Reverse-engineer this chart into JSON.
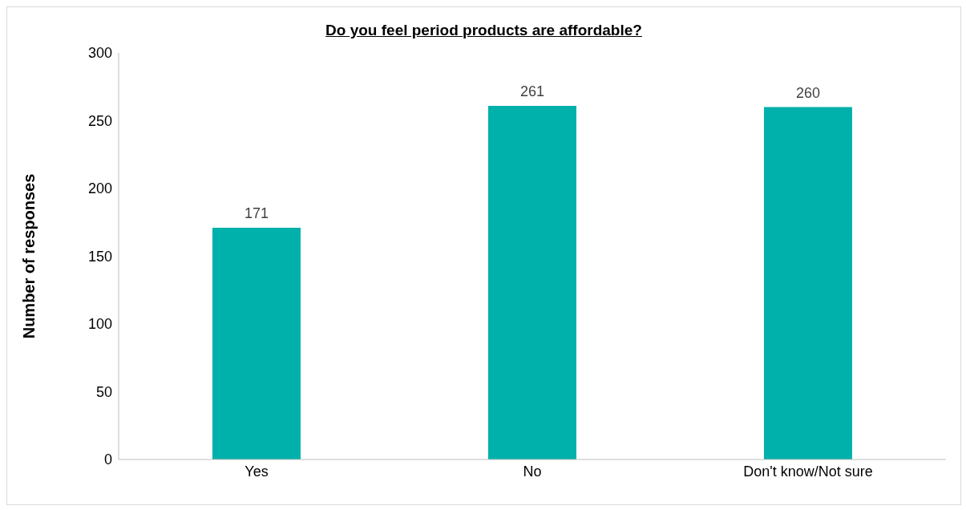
{
  "chart_data": {
    "type": "bar",
    "title": "Do you feel period products are affordable?",
    "ylabel": "Number of responses",
    "categories": [
      "Yes",
      "No",
      "Don't know/Not sure"
    ],
    "values": [
      171,
      261,
      260
    ],
    "color": "#00b0aa",
    "ylim": [
      0,
      300
    ],
    "yticks": [
      0,
      50,
      100,
      150,
      200,
      250,
      300
    ],
    "grid": false,
    "data_labels": true
  }
}
